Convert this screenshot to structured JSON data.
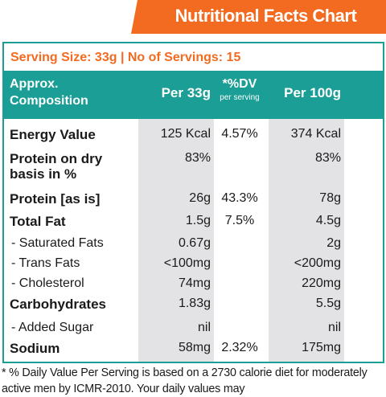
{
  "header": {
    "title": "Nutritional Facts Chart"
  },
  "serving": "Serving Size: 33g | No of Servings: 15",
  "table": {
    "columns": {
      "composition": "Approx.\nComposition",
      "per_33g": "Per 33g",
      "dv": "*%DV",
      "dv_note": "per serving",
      "per_100g": "Per 100g"
    },
    "rows": [
      {
        "label": "Energy Value",
        "per_33g": "125 Kcal",
        "dv": "4.57%",
        "per_100g": "374 Kcal"
      },
      {
        "label": "Protein on dry basis in %",
        "per_33g": "83%",
        "per_100g": "83%"
      },
      {
        "label": "Protein [as is]",
        "per_33g": "26g",
        "dv": "43.3%",
        "per_100g": "78g"
      },
      {
        "label": "Total Fat",
        "per_33g": "1.5g",
        "dv": "7.5%",
        "per_100g": "4.5g"
      },
      {
        "label": "- Saturated Fats",
        "per_33g": "0.67g",
        "per_100g": "2g"
      },
      {
        "label": "- Trans Fats",
        "per_33g": "<100mg",
        "per_100g": "<200mg"
      },
      {
        "label": "- Cholesterol",
        "per_33g": "74mg",
        "per_100g": "220mg"
      },
      {
        "label": "Carbohydrates",
        "per_33g": "1.83g",
        "per_100g": "5.5g"
      },
      {
        "label": "- Added Sugar",
        "per_33g": "nil",
        "per_100g": "nil"
      },
      {
        "label": "Sodium",
        "per_33g": "58mg",
        "dv": "2.32%",
        "per_100g": "175mg"
      }
    ]
  },
  "footnote": "* % Daily Value Per Serving is based on a 2730 calorie diet for moderately active men by ICMR-2010. Your daily values may"
}
